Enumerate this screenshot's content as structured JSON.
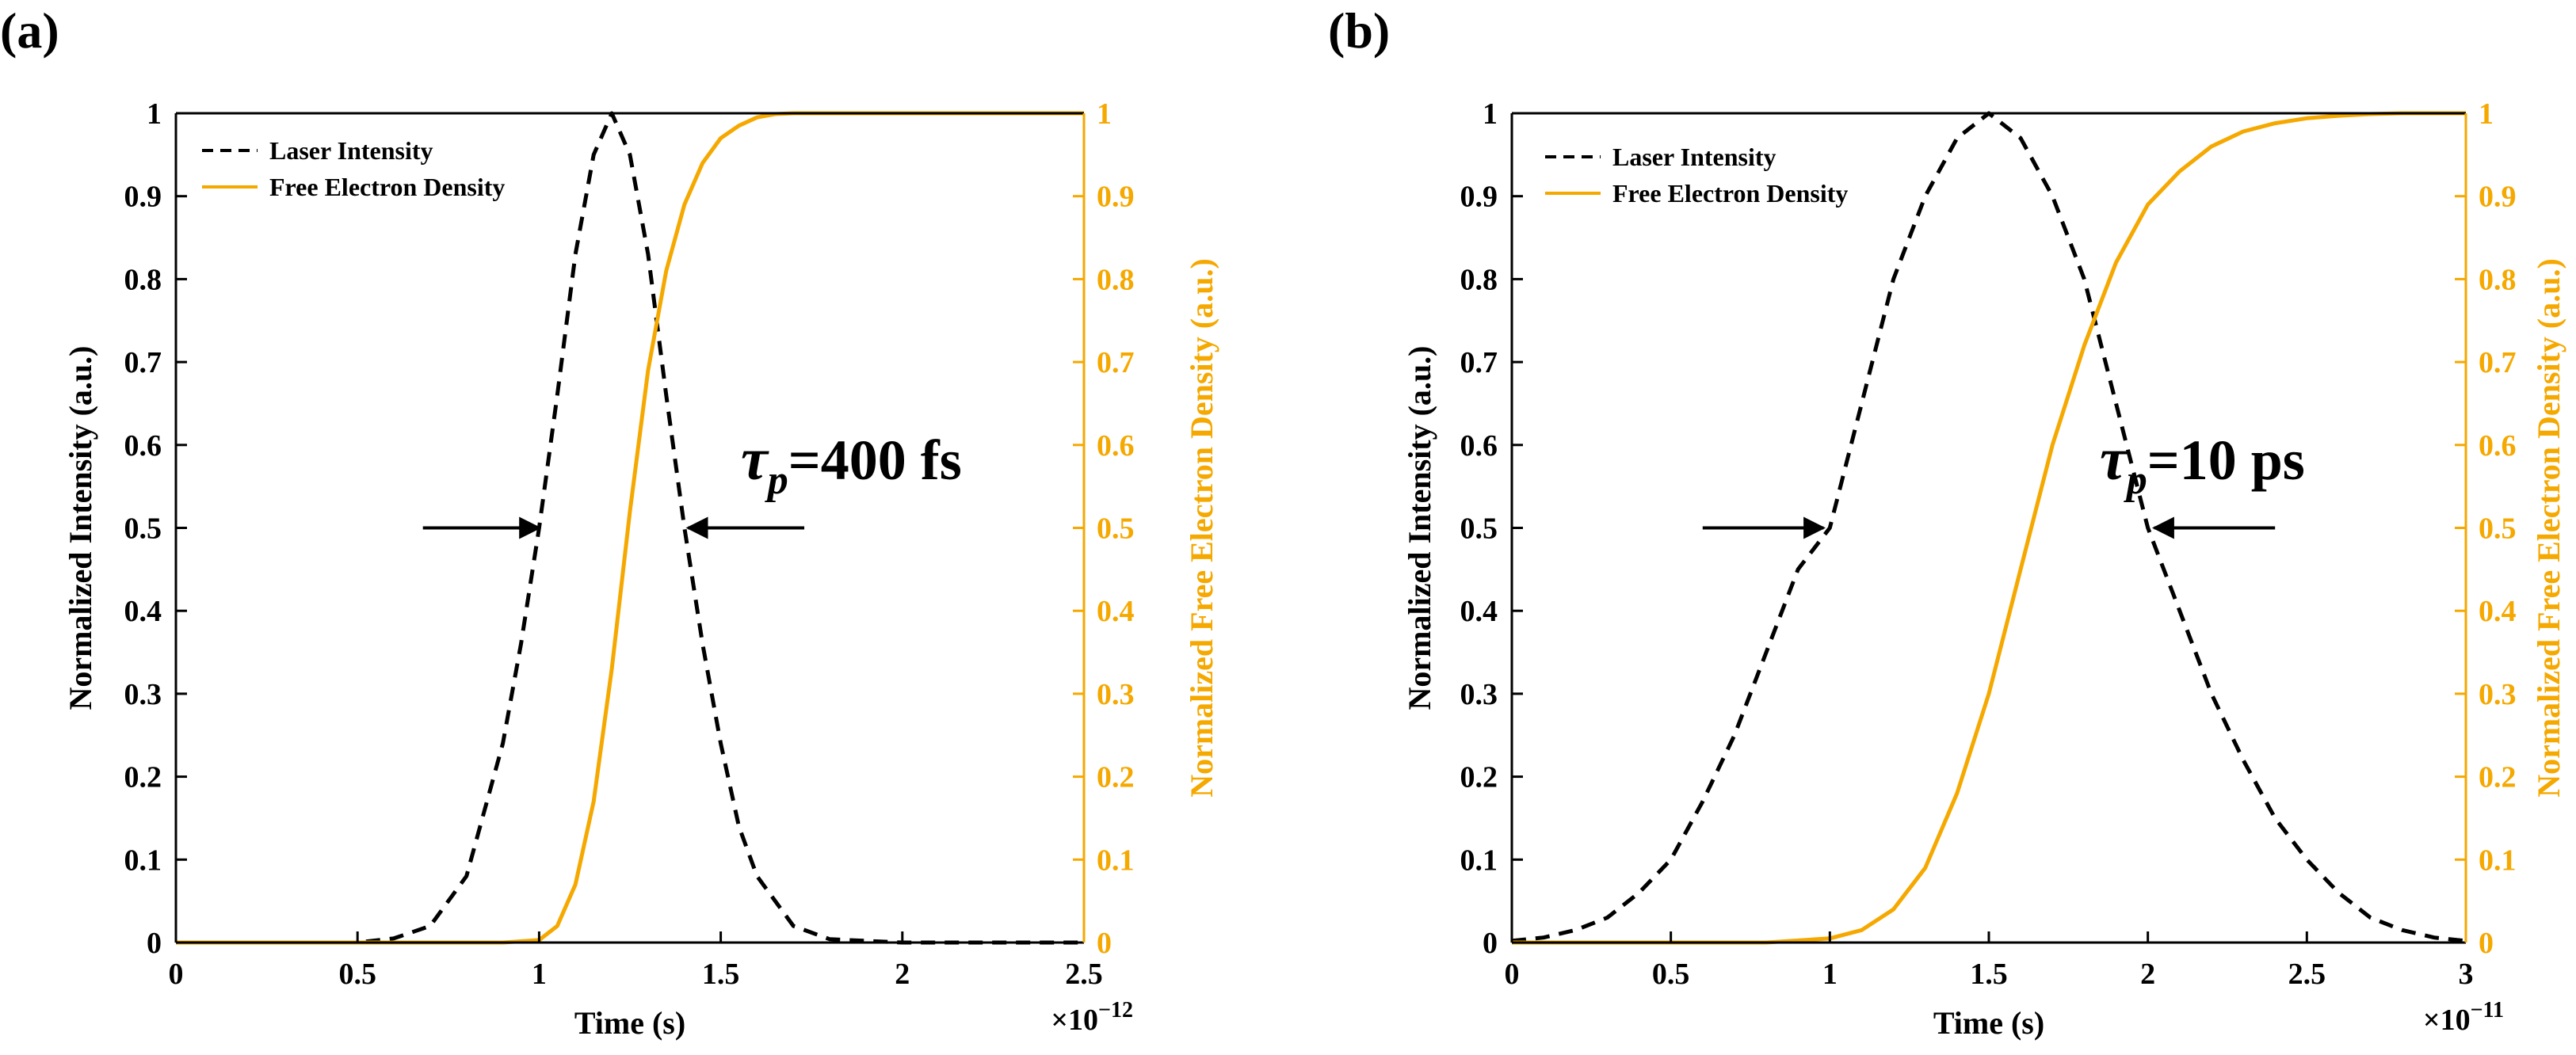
{
  "colors": {
    "laser": "#000000",
    "electron": "#F5A800",
    "axis_right": "#F5A800",
    "arrow": "#000000"
  },
  "chart_data": [
    {
      "panel_label": "(a)",
      "type": "line",
      "xlabel": "Time (s)",
      "ylabel_left": "Normalized Intensity (a.u.)",
      "ylabel_right": "Normalized Free Electron Density (a.u.)",
      "xlim": [
        0,
        2.5
      ],
      "ylim": [
        0,
        1
      ],
      "x_scale_multiplier": "×10",
      "x_scale_exponent": "−12",
      "xticks": [
        "0",
        "0.5",
        "1",
        "1.5",
        "2",
        "2.5"
      ],
      "yticks": [
        "0",
        "0.1",
        "0.2",
        "0.3",
        "0.4",
        "0.5",
        "0.6",
        "0.7",
        "0.8",
        "0.9",
        "1"
      ],
      "legend": [
        "Laser Intensity",
        "Free Electron Density"
      ],
      "annotation": {
        "tau": "τ",
        "sub": "p",
        "text": "=400 fs"
      },
      "arrows": {
        "y": 0.5,
        "left_from": 0.68,
        "left_to": 1.0,
        "right_from": 1.73,
        "right_to": 1.41
      },
      "series": [
        {
          "name": "Laser Intensity",
          "style": "dashed",
          "x": [
            0,
            0.5,
            0.6,
            0.7,
            0.8,
            0.9,
            0.95,
            1.0,
            1.05,
            1.1,
            1.15,
            1.2,
            1.25,
            1.3,
            1.35,
            1.4,
            1.45,
            1.5,
            1.55,
            1.6,
            1.7,
            1.8,
            2.0,
            2.5
          ],
          "y": [
            0,
            0.0,
            0.005,
            0.02,
            0.08,
            0.24,
            0.36,
            0.5,
            0.66,
            0.83,
            0.95,
            1.0,
            0.95,
            0.83,
            0.66,
            0.5,
            0.36,
            0.24,
            0.14,
            0.08,
            0.02,
            0.004,
            0.0,
            0.0
          ]
        },
        {
          "name": "Free Electron Density",
          "style": "solid",
          "x": [
            0,
            0.9,
            1.0,
            1.05,
            1.1,
            1.15,
            1.2,
            1.25,
            1.3,
            1.35,
            1.4,
            1.45,
            1.5,
            1.55,
            1.6,
            1.65,
            1.7,
            1.75,
            2.0,
            2.5
          ],
          "y": [
            0,
            0.0,
            0.003,
            0.02,
            0.07,
            0.17,
            0.33,
            0.52,
            0.69,
            0.81,
            0.89,
            0.94,
            0.97,
            0.985,
            0.995,
            0.999,
            1.0,
            1.0,
            1.0,
            1.0
          ]
        }
      ]
    },
    {
      "panel_label": "(b)",
      "type": "line",
      "xlabel": "Time (s)",
      "ylabel_left": "Normalized Intensity (a.u.)",
      "ylabel_right": "Normalized Free Electron Density (a.u.)",
      "xlim": [
        0,
        3
      ],
      "ylim": [
        0,
        1
      ],
      "x_scale_multiplier": "×10",
      "x_scale_exponent": "−11",
      "xticks": [
        "0",
        "0.5",
        "1",
        "1.5",
        "2",
        "2.5",
        "3"
      ],
      "yticks": [
        "0",
        "0.1",
        "0.2",
        "0.3",
        "0.4",
        "0.5",
        "0.6",
        "0.7",
        "0.8",
        "0.9",
        "1"
      ],
      "legend": [
        "Laser Intensity",
        "Free Electron Density"
      ],
      "annotation": {
        "tau": "τ",
        "sub": "p",
        "text": "=10 ps"
      },
      "arrows": {
        "y": 0.5,
        "left_from": 0.6,
        "left_to": 0.98,
        "right_from": 2.4,
        "right_to": 2.02
      },
      "series": [
        {
          "name": "Laser Intensity",
          "style": "dashed",
          "x": [
            0,
            0.1,
            0.2,
            0.3,
            0.4,
            0.5,
            0.6,
            0.7,
            0.8,
            0.9,
            1.0,
            1.1,
            1.2,
            1.3,
            1.4,
            1.5,
            1.6,
            1.7,
            1.8,
            1.9,
            2.0,
            2.1,
            2.2,
            2.3,
            2.4,
            2.5,
            2.6,
            2.7,
            2.8,
            2.9,
            3.0
          ],
          "y": [
            0.002,
            0.006,
            0.015,
            0.03,
            0.06,
            0.1,
            0.17,
            0.25,
            0.35,
            0.45,
            0.5,
            0.65,
            0.8,
            0.9,
            0.97,
            1.0,
            0.97,
            0.9,
            0.8,
            0.65,
            0.5,
            0.4,
            0.3,
            0.22,
            0.15,
            0.1,
            0.06,
            0.03,
            0.015,
            0.006,
            0.002
          ]
        },
        {
          "name": "Free Electron Density",
          "style": "solid",
          "x": [
            0,
            0.8,
            1.0,
            1.1,
            1.2,
            1.3,
            1.4,
            1.5,
            1.6,
            1.7,
            1.8,
            1.9,
            2.0,
            2.1,
            2.2,
            2.3,
            2.4,
            2.5,
            2.6,
            2.7,
            2.8,
            3.0
          ],
          "y": [
            0,
            0.0,
            0.005,
            0.015,
            0.04,
            0.09,
            0.18,
            0.3,
            0.45,
            0.6,
            0.72,
            0.82,
            0.89,
            0.93,
            0.96,
            0.978,
            0.988,
            0.994,
            0.997,
            0.999,
            1.0,
            1.0
          ]
        }
      ]
    }
  ]
}
